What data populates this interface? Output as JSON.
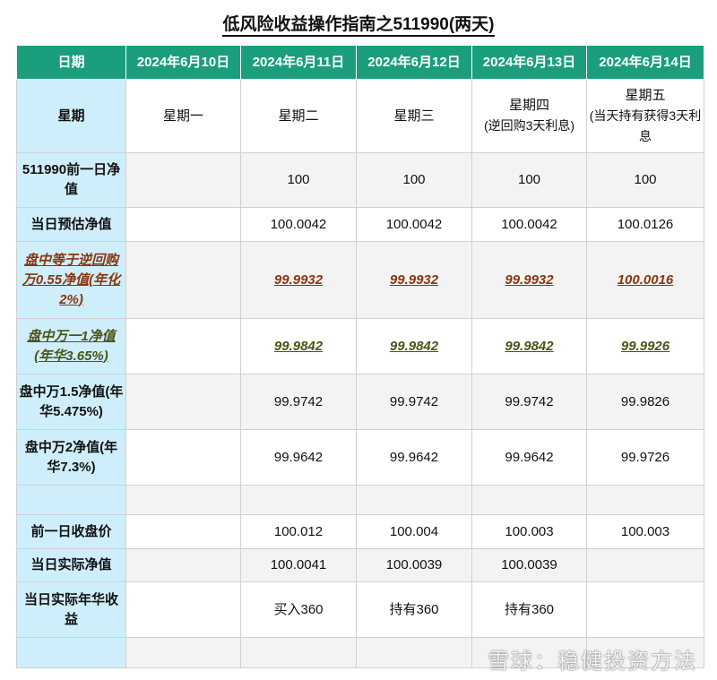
{
  "title": "低风险收益操作指南之511990(两天)",
  "header": [
    "日期",
    "2024年6月10日",
    "2024年6月11日",
    "2024年6月12日",
    "2024年6月13日",
    "2024年6月14日"
  ],
  "rows": [
    {
      "label": "星期",
      "cells": [
        "星期一",
        "星期二",
        "星期三",
        "星期四",
        "星期五"
      ],
      "sub": [
        "",
        "",
        "",
        "(逆回购3天利息)",
        "(当天持有获得3天利息"
      ]
    },
    {
      "label": "511990前一日净值",
      "cells": [
        "",
        "100",
        "100",
        "100",
        "100"
      ]
    },
    {
      "label": "当日预估净值",
      "cells": [
        "",
        "100.0042",
        "100.0042",
        "100.0042",
        "100.0126"
      ]
    },
    {
      "label": "盘中等于逆回购万0.55净值(年化2%)",
      "cells": [
        "",
        "99.9932",
        "99.9932",
        "99.9932",
        "100.0016"
      ]
    },
    {
      "label": "盘中万一1净值(年华3.65%)",
      "cells": [
        "",
        "99.9842",
        "99.9842",
        "99.9842",
        "99.9926"
      ]
    },
    {
      "label": "盘中万1.5净值(年华5.475%)",
      "cells": [
        "",
        "99.9742",
        "99.9742",
        "99.9742",
        "99.9826"
      ]
    },
    {
      "label": "盘中万2净值(年华7.3%)",
      "cells": [
        "",
        "99.9642",
        "99.9642",
        "99.9642",
        "99.9726"
      ]
    },
    {
      "label": "",
      "cells": [
        "",
        "",
        "",
        "",
        ""
      ]
    },
    {
      "label": "前一日收盘价",
      "cells": [
        "",
        "100.012",
        "100.004",
        "100.003",
        "100.003"
      ]
    },
    {
      "label": "当日实际净值",
      "cells": [
        "",
        "100.0041",
        "100.0039",
        "100.0039",
        ""
      ]
    },
    {
      "label": "当日实际年华收益",
      "cells": [
        "",
        "买入360",
        "持有360",
        "持有360",
        ""
      ]
    },
    {
      "label": "",
      "cells": [
        "",
        "",
        "",
        "",
        ""
      ]
    }
  ],
  "watermark": "雪球：稳健投资方法",
  "colors": {
    "header": "#1b9e7e",
    "label": "#cfeefb",
    "brown": "#8b3510",
    "olive": "#4a5516"
  }
}
